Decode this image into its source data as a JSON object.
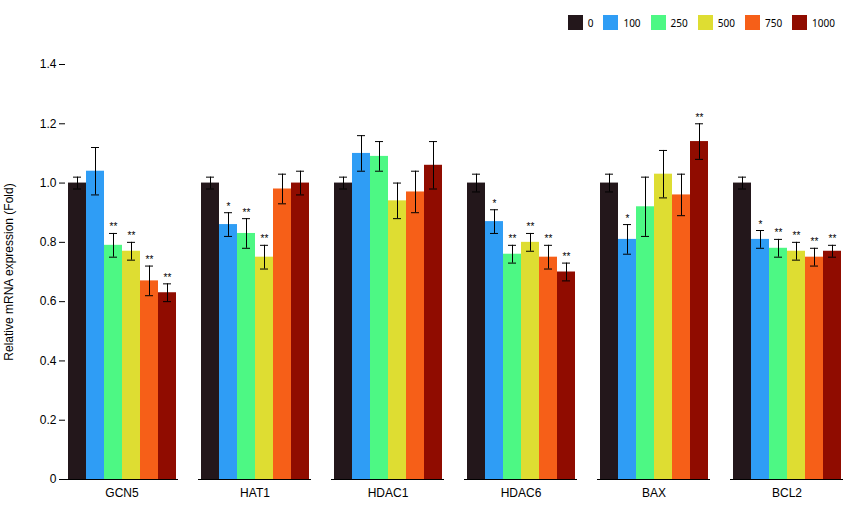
{
  "chart_data": {
    "type": "bar",
    "categories": [
      "GCN5",
      "HAT1",
      "HDAC1",
      "HDAC6",
      "BAX",
      "BCL2"
    ],
    "series": [
      {
        "name": "0",
        "values": [
          1.0,
          1.0,
          1.0,
          1.0,
          1.0,
          1.0
        ],
        "errors": [
          0.02,
          0.02,
          0.02,
          0.03,
          0.03,
          0.02
        ],
        "significance": [
          null,
          null,
          null,
          null,
          null,
          null
        ]
      },
      {
        "name": "100",
        "values": [
          1.04,
          0.86,
          1.1,
          0.87,
          0.81,
          0.81
        ],
        "errors": [
          0.08,
          0.04,
          0.06,
          0.04,
          0.05,
          0.03
        ],
        "significance": [
          null,
          "*",
          null,
          "*",
          "*",
          "*"
        ]
      },
      {
        "name": "250",
        "values": [
          0.79,
          0.83,
          1.09,
          0.76,
          0.92,
          0.78
        ],
        "errors": [
          0.04,
          0.05,
          0.05,
          0.03,
          0.1,
          0.03
        ],
        "significance": [
          "**",
          "**",
          null,
          "**",
          null,
          "**"
        ]
      },
      {
        "name": "500",
        "values": [
          0.77,
          0.75,
          0.94,
          0.8,
          1.03,
          0.77
        ],
        "errors": [
          0.03,
          0.04,
          0.06,
          0.03,
          0.08,
          0.03
        ],
        "significance": [
          "**",
          "**",
          null,
          "**",
          null,
          "**"
        ]
      },
      {
        "name": "750",
        "values": [
          0.67,
          0.98,
          0.97,
          0.75,
          0.96,
          0.75
        ],
        "errors": [
          0.05,
          0.05,
          0.07,
          0.04,
          0.07,
          0.03
        ],
        "significance": [
          "**",
          null,
          null,
          "**",
          null,
          "**"
        ]
      },
      {
        "name": "1000",
        "values": [
          0.63,
          1.0,
          1.06,
          0.7,
          1.14,
          0.77
        ],
        "errors": [
          0.03,
          0.04,
          0.08,
          0.03,
          0.06,
          0.02
        ],
        "significance": [
          "**",
          null,
          null,
          "**",
          "**",
          "**"
        ]
      }
    ],
    "ylabel": "Relative mRNA expression (Fold)",
    "ylim": [
      0,
      1.4
    ],
    "yticks": [
      0,
      0.2,
      0.4,
      0.6,
      0.8,
      {
        "value": 1.0,
        "label": "1.0"
      },
      1.2,
      1.4
    ],
    "legend": "upper right",
    "grid": false
  }
}
